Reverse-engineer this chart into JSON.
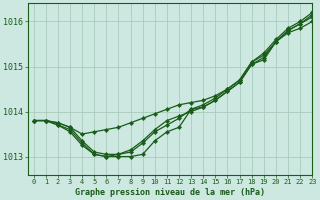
{
  "title": "Graphe pression niveau de la mer (hPa)",
  "bg_color": "#cce8e0",
  "grid_color": "#aaccbb",
  "line_color": "#1a5c1a",
  "xlim": [
    -0.5,
    23
  ],
  "ylim": [
    1012.6,
    1016.4
  ],
  "yticks": [
    1013,
    1014,
    1015,
    1016
  ],
  "xticks": [
    0,
    1,
    2,
    3,
    4,
    5,
    6,
    7,
    8,
    9,
    10,
    11,
    12,
    13,
    14,
    15,
    16,
    17,
    18,
    19,
    20,
    21,
    22,
    23
  ],
  "series1": [
    1013.8,
    1013.8,
    1013.75,
    1013.65,
    1013.35,
    1013.1,
    1013.05,
    1013.05,
    1013.1,
    1013.3,
    1013.55,
    1013.7,
    1013.85,
    1014.05,
    1014.15,
    1014.3,
    1014.5,
    1014.7,
    1015.1,
    1015.25,
    1015.55,
    1015.8,
    1015.95,
    1016.1
  ],
  "series2": [
    1013.8,
    1013.8,
    1013.7,
    1013.55,
    1013.25,
    1013.05,
    1013.0,
    1013.05,
    1013.15,
    1013.35,
    1013.6,
    1013.8,
    1013.9,
    1014.0,
    1014.1,
    1014.25,
    1014.45,
    1014.65,
    1015.05,
    1015.15,
    1015.55,
    1015.75,
    1015.85,
    1016.0
  ],
  "series3": [
    1013.8,
    1013.8,
    1013.7,
    1013.6,
    1013.3,
    1013.05,
    1013.0,
    1013.0,
    1013.0,
    1013.05,
    1013.35,
    1013.55,
    1013.65,
    1014.05,
    1014.1,
    1014.25,
    1014.45,
    1014.65,
    1015.05,
    1015.2,
    1015.55,
    1015.8,
    1015.95,
    1016.15
  ],
  "series_high": [
    1013.8,
    1013.8,
    1013.75,
    1013.65,
    1013.5,
    1013.55,
    1013.6,
    1013.65,
    1013.75,
    1013.85,
    1013.95,
    1014.05,
    1014.15,
    1014.2,
    1014.25,
    1014.35,
    1014.5,
    1014.7,
    1015.1,
    1015.3,
    1015.6,
    1015.85,
    1016.0,
    1016.2
  ],
  "figwidth": 3.2,
  "figheight": 2.0,
  "dpi": 100
}
